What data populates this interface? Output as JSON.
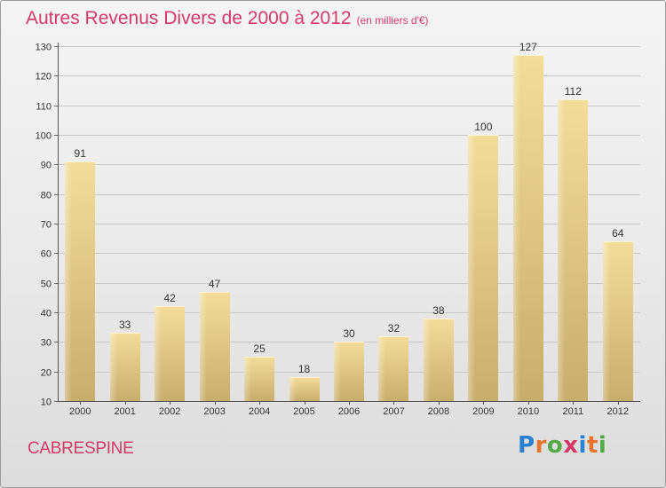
{
  "chart_title": "Autres Revenus Divers de 2000 à 2012",
  "chart_subtitle": "(en milliers d'€)",
  "location": "CABRESPINE",
  "brand": {
    "letters": [
      "P",
      "r",
      "o",
      "x",
      "i",
      "t",
      "i"
    ],
    "colors": [
      "#2b7fd0",
      "#e8732a",
      "#54a845",
      "#d4386a",
      "#2b7fd0",
      "#e8732a",
      "#54a845"
    ]
  },
  "chart_data": {
    "type": "bar",
    "categories": [
      "2000",
      "2001",
      "2002",
      "2003",
      "2004",
      "2005",
      "2006",
      "2007",
      "2008",
      "2009",
      "2010",
      "2011",
      "2012"
    ],
    "values": [
      91,
      33,
      42,
      47,
      25,
      18,
      30,
      32,
      38,
      100,
      127,
      112,
      64
    ],
    "data_labels": [
      "91",
      "33",
      "42",
      "47",
      "25",
      "18",
      "30",
      "32",
      "38",
      "100",
      "127",
      "112",
      "64"
    ],
    "title": "Autres Revenus Divers de 2000 à 2012",
    "subtitle": "(en milliers d'€)",
    "xlabel": "",
    "ylabel": "",
    "ylim": [
      10,
      130
    ],
    "yticks": [
      10,
      20,
      30,
      40,
      50,
      60,
      70,
      80,
      90,
      100,
      110,
      120,
      130
    ],
    "grid": true,
    "bar_color": "#e9cf8a",
    "grid_color": "#c8c8c8"
  }
}
